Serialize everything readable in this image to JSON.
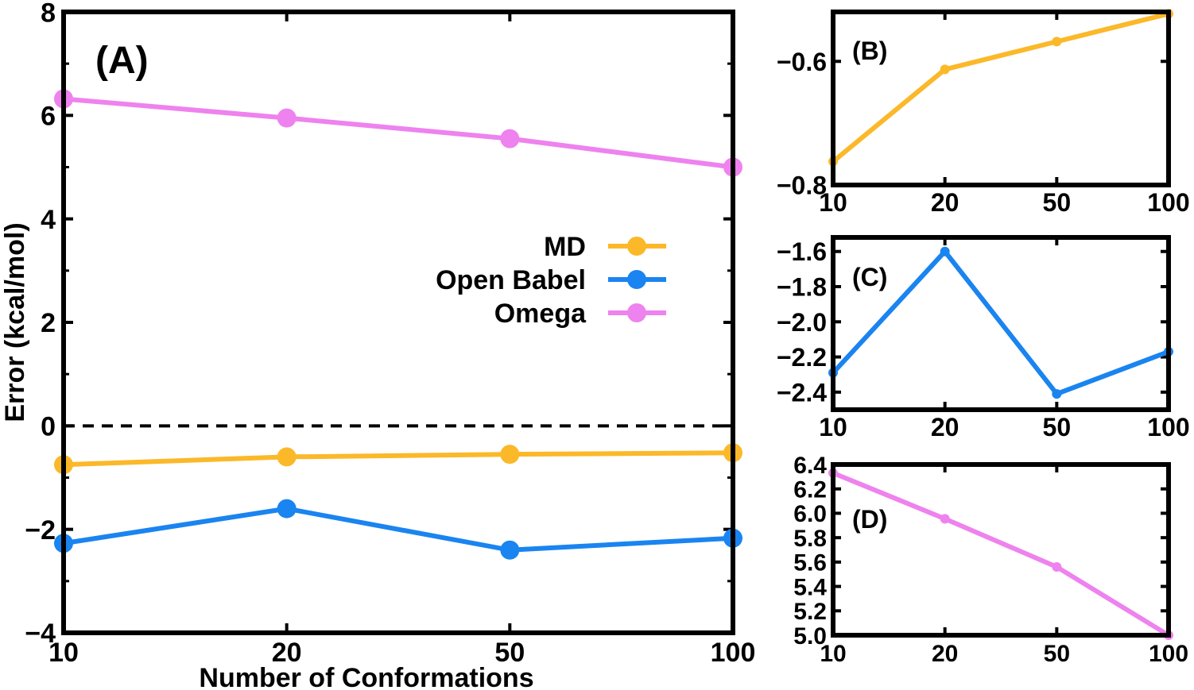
{
  "colors": {
    "MD": "#FBB829",
    "Open Babel": "#1A84F0",
    "Omega": "#EE82EE",
    "axis": "#000000"
  },
  "chart_data": [
    {
      "id": "A",
      "type": "line",
      "panel_label": "(A)",
      "categories": [
        "10",
        "20",
        "50",
        "100"
      ],
      "series": [
        {
          "name": "MD",
          "values": [
            -0.75,
            -0.6,
            -0.55,
            -0.52
          ]
        },
        {
          "name": "Open Babel",
          "values": [
            -2.27,
            -1.6,
            -2.4,
            -2.17
          ]
        },
        {
          "name": "Omega",
          "values": [
            6.32,
            5.95,
            5.55,
            5.0
          ]
        }
      ],
      "xlabel": "Number of Conformations",
      "ylabel": "Error (kcal/mol)",
      "ylim": [
        -4,
        8
      ],
      "yticks": [
        "−4",
        "−2",
        "0",
        "2",
        "4",
        "6",
        "8"
      ],
      "reference_line": 0,
      "legend_position": "center-right",
      "grid": false
    },
    {
      "id": "B",
      "type": "line",
      "panel_label": "(B)",
      "categories": [
        "10",
        "20",
        "50",
        "100"
      ],
      "series": [
        {
          "values": [
            -0.762,
            -0.613,
            -0.568,
            -0.523
          ]
        }
      ],
      "ylim": [
        -0.8,
        -0.52
      ],
      "yticks": [
        "−0.8",
        "−0.6"
      ],
      "grid": false
    },
    {
      "id": "C",
      "type": "line",
      "panel_label": "(C)",
      "categories": [
        "10",
        "20",
        "50",
        "100"
      ],
      "series": [
        {
          "values": [
            -2.29,
            -1.6,
            -2.41,
            -2.17
          ]
        }
      ],
      "ylim": [
        -2.5,
        -1.52
      ],
      "yticks": [
        "−2.4",
        "−2.2",
        "−2.0",
        "−1.8",
        "−1.6"
      ],
      "grid": false
    },
    {
      "id": "D",
      "type": "line",
      "panel_label": "(D)",
      "categories": [
        "10",
        "20",
        "50",
        "100"
      ],
      "series": [
        {
          "values": [
            6.33,
            5.955,
            5.56,
            5.0
          ]
        }
      ],
      "ylim": [
        5.0,
        6.4
      ],
      "yticks": [
        "5.0",
        "5.2",
        "5.4",
        "5.6",
        "5.8",
        "6.0",
        "6.2",
        "6.4"
      ],
      "grid": false
    }
  ]
}
